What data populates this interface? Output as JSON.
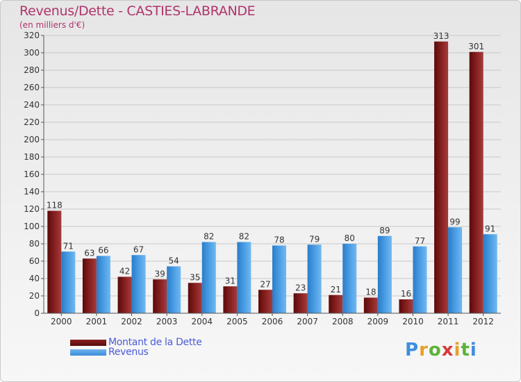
{
  "title": "Revenus/Dette - CASTIES-LABRANDE",
  "subtitle": "(en milliers d'€)",
  "legend": {
    "debt_label": "Montant de la Dette",
    "revenue_label": "Revenus"
  },
  "logo": {
    "letters": [
      "P",
      "r",
      "o",
      "x",
      "i",
      "t",
      "i"
    ],
    "colors": [
      "#3d8ee0",
      "#e5a12a",
      "#5cb338",
      "#d63a3a",
      "#e5a12a",
      "#5cb338",
      "#3d8ee0"
    ]
  },
  "colors": {
    "debt": "#7a1212",
    "debt_light": "#a03a3a",
    "revenue": "#3d8ed9",
    "revenue_light": "#6db2ef",
    "title": "#b0336b",
    "legend_text": "#4b5bd6"
  },
  "chart_data": {
    "type": "bar",
    "categories": [
      "2000",
      "2001",
      "2002",
      "2003",
      "2004",
      "2005",
      "2006",
      "2007",
      "2008",
      "2009",
      "2010",
      "2011",
      "2012"
    ],
    "series": [
      {
        "name": "Montant de la Dette",
        "values": [
          118,
          63,
          42,
          39,
          35,
          31,
          27,
          23,
          21,
          18,
          16,
          313,
          301
        ]
      },
      {
        "name": "Revenus",
        "values": [
          71,
          66,
          67,
          54,
          82,
          82,
          78,
          79,
          80,
          89,
          77,
          99,
          91
        ]
      }
    ],
    "ylim": [
      0,
      320
    ],
    "yticks": [
      0,
      20,
      40,
      60,
      80,
      100,
      120,
      140,
      160,
      180,
      200,
      220,
      240,
      260,
      280,
      300,
      320
    ],
    "grid": true,
    "title": "Revenus/Dette - CASTIES-LABRANDE",
    "ylabel": "(en milliers d'€)",
    "xlabel": ""
  }
}
